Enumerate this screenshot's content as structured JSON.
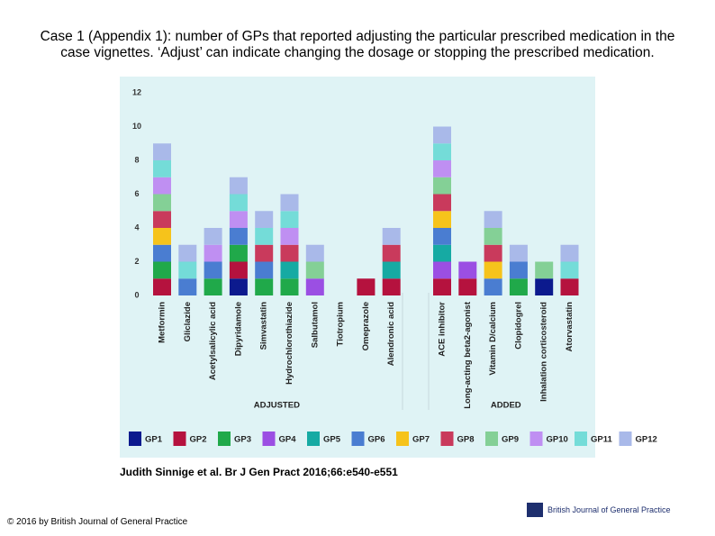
{
  "header": {
    "title": "Case 1 (Appendix 1): number of GPs that reported adjusting the particular prescribed medication in the case vignettes. ‘Adjust’ can indicate changing the dosage or stopping the prescribed medication."
  },
  "chart_data": {
    "type": "stacked_bar",
    "categories": [
      "Metformin",
      "Gliclazide",
      "Acetylsalicylic acid",
      "Dipyridamole",
      "Simvastatin",
      "Hydrochlorothiazide",
      "Salbutamol",
      "Tiotropium",
      "Omeprazole",
      "Alendronic acid",
      "ACE inhibitor",
      "Long-acting beta2-agonist",
      "Vitamin D/calcium",
      "Clopidogrel",
      "Inhalation corticosteroid",
      "Atorvastatin"
    ],
    "group_labels": [
      "ADJUSTED",
      "ADDED"
    ],
    "ylim": [
      0,
      12
    ],
    "yticks": [
      0,
      2,
      4,
      6,
      8,
      10,
      12
    ],
    "grid": false,
    "series": [
      {
        "name": "GP1",
        "color": "#0c1a8e",
        "values": [
          0,
          0,
          0,
          1,
          0,
          0,
          0,
          0,
          0,
          0,
          0,
          0,
          0,
          0,
          1,
          0
        ]
      },
      {
        "name": "GP2",
        "color": "#b5123e",
        "values": [
          1,
          0,
          0,
          1,
          0,
          0,
          0,
          0,
          1,
          1,
          1,
          1,
          0,
          0,
          0,
          1
        ]
      },
      {
        "name": "GP3",
        "color": "#20a94a",
        "values": [
          1,
          0,
          1,
          1,
          1,
          1,
          0,
          0,
          0,
          0,
          0,
          0,
          0,
          1,
          0,
          0
        ]
      },
      {
        "name": "GP4",
        "color": "#9b4fe3",
        "values": [
          0,
          0,
          0,
          0,
          0,
          0,
          1,
          0,
          0,
          0,
          1,
          1,
          0,
          0,
          0,
          0
        ]
      },
      {
        "name": "GP5",
        "color": "#16aaa3",
        "values": [
          0,
          0,
          0,
          0,
          0,
          1,
          0,
          0,
          0,
          1,
          1,
          0,
          0,
          0,
          0,
          0
        ]
      },
      {
        "name": "GP6",
        "color": "#4a7dd1",
        "values": [
          1,
          1,
          1,
          1,
          1,
          0,
          0,
          0,
          0,
          0,
          1,
          0,
          1,
          1,
          0,
          0
        ]
      },
      {
        "name": "GP7",
        "color": "#f6c31b",
        "values": [
          1,
          0,
          0,
          0,
          0,
          0,
          0,
          0,
          0,
          0,
          1,
          0,
          1,
          0,
          0,
          0
        ]
      },
      {
        "name": "GP8",
        "color": "#c93a5c",
        "values": [
          1,
          0,
          0,
          0,
          1,
          1,
          0,
          0,
          0,
          1,
          1,
          0,
          1,
          0,
          0,
          0
        ]
      },
      {
        "name": "GP9",
        "color": "#84d096",
        "values": [
          1,
          0,
          0,
          0,
          0,
          0,
          1,
          0,
          0,
          0,
          1,
          0,
          1,
          0,
          1,
          0
        ]
      },
      {
        "name": "GP10",
        "color": "#bf8ff2",
        "values": [
          1,
          0,
          1,
          1,
          0,
          1,
          0,
          0,
          0,
          0,
          1,
          0,
          0,
          0,
          0,
          0
        ]
      },
      {
        "name": "GP11",
        "color": "#74dcd8",
        "values": [
          1,
          1,
          0,
          1,
          1,
          1,
          0,
          0,
          0,
          0,
          1,
          0,
          0,
          0,
          0,
          1
        ]
      },
      {
        "name": "GP12",
        "color": "#a9b9e9",
        "values": [
          1,
          1,
          1,
          1,
          1,
          1,
          1,
          0,
          0,
          1,
          1,
          0,
          1,
          1,
          0,
          1
        ]
      }
    ]
  },
  "citation": "Judith Sinnige et al. Br J Gen Pract 2016;66:e540-e551",
  "footer": {
    "copyright": "© 2016 by British Journal of General Practice",
    "logo_text": "British Journal of General Practice"
  }
}
